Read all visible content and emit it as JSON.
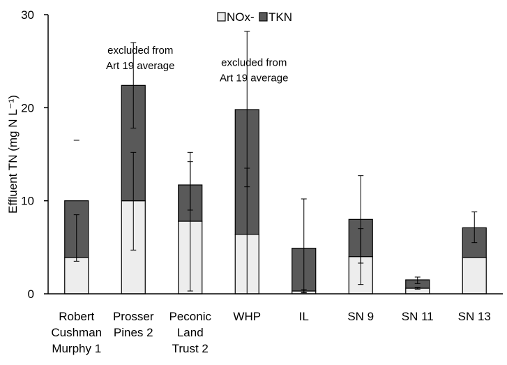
{
  "chart_data": {
    "type": "bar",
    "stacked": true,
    "ylabel": "Effluent TN (mg N L⁻¹)",
    "ylim": [
      0,
      30
    ],
    "yticks": [
      0,
      10,
      20,
      30
    ],
    "grid": false,
    "legend_position": "top-center",
    "categories": [
      [
        "Robert",
        "Cushman",
        "Murphy 1"
      ],
      [
        "Prosser",
        "Pines 2"
      ],
      [
        "Peconic",
        "Land",
        "Trust 2"
      ],
      [
        "WHP"
      ],
      [
        "IL"
      ],
      [
        "SN 9"
      ],
      [
        "SN 11"
      ],
      [
        "SN 13"
      ]
    ],
    "series": [
      {
        "name": "NOx-",
        "color": "#ededed",
        "values": [
          3.9,
          10.0,
          7.8,
          6.4,
          0.3,
          4.0,
          0.6,
          3.9
        ],
        "error_bars": [
          [
            3.5,
            8.5
          ],
          [
            4.7,
            15.2
          ],
          [
            0.3,
            14.2
          ],
          [
            0,
            13.5
          ],
          [
            0.15,
            0.45
          ],
          [
            1.0,
            7.0
          ],
          [
            0.5,
            0.7
          ],
          [
            3.9,
            3.9
          ]
        ]
      },
      {
        "name": "TKN",
        "color": "#595959",
        "values": [
          6.1,
          12.4,
          3.9,
          13.4,
          4.6,
          4.0,
          0.9,
          3.2
        ],
        "error_bars": [
          [
            null,
            16.5
          ],
          [
            17.8,
            27.0
          ],
          [
            9.0,
            15.2
          ],
          [
            11.5,
            28.2
          ],
          [
            0.1,
            10.2
          ],
          [
            3.3,
            12.7
          ],
          [
            1.1,
            1.8
          ],
          [
            5.5,
            8.8
          ]
        ]
      }
    ],
    "annotations": [
      {
        "lines": [
          "excluded from",
          "Art 19 average"
        ],
        "category_index": 1,
        "y": 25.8
      },
      {
        "lines": [
          "excluded from",
          "Art 19 average"
        ],
        "category_index": 3,
        "y": 24.5
      }
    ]
  }
}
